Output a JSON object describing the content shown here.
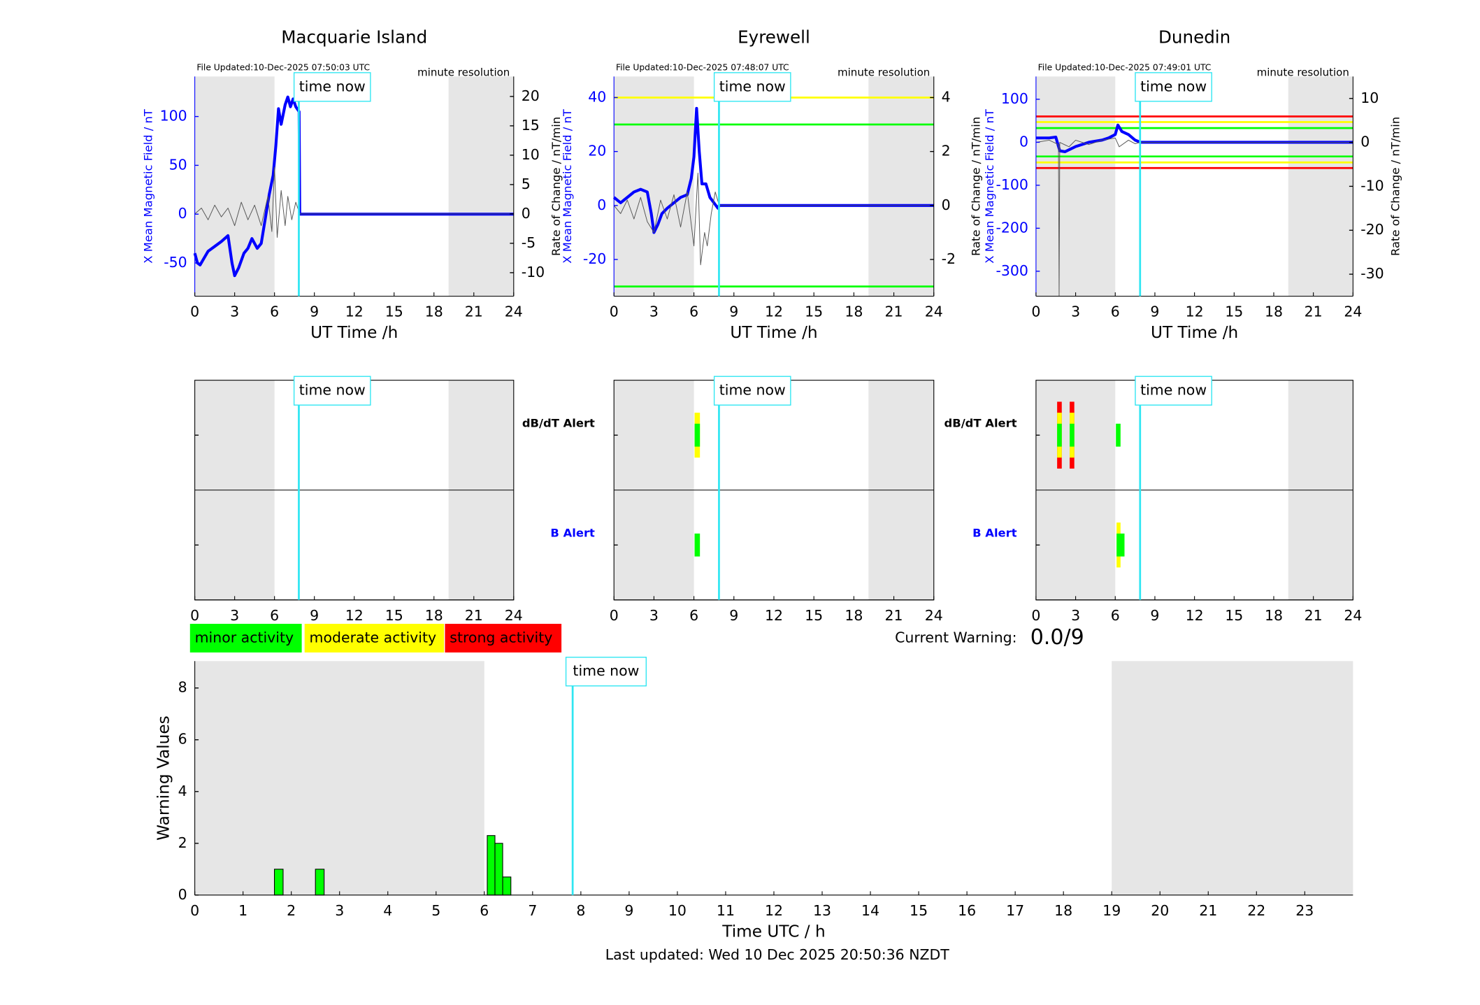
{
  "chart_data": [
    {
      "type": "line",
      "title": "Macquarie Island",
      "file_updated": "File Updated:10-Dec-2025 07:50:03 UTC",
      "resolution": "minute resolution",
      "ylabel": "X Mean Magnetic Field / nT",
      "y2label": "Rate of Change / nT/min",
      "xlabel": "UT Time /h",
      "xlim": [
        0,
        24
      ],
      "xticks": [
        0,
        3,
        6,
        9,
        12,
        15,
        18,
        21,
        24
      ],
      "ylim": [
        -84,
        141
      ],
      "yticks": [
        -50,
        0,
        50,
        100
      ],
      "y2lim": [
        -14,
        23.4
      ],
      "y2ticks": [
        -10,
        -5,
        0,
        5,
        10,
        15,
        20
      ],
      "shaded": [
        [
          0,
          6
        ],
        [
          19.1,
          24
        ]
      ],
      "annotation": "time now",
      "time_now": 7.83,
      "thresholds": [],
      "series": [
        {
          "color": "#0000ff",
          "x": [
            0,
            0.2,
            0.4,
            0.7,
            1,
            1.5,
            2,
            2.5,
            2.8,
            3,
            3.3,
            3.7,
            4,
            4.3,
            4.7,
            5,
            5.3,
            5.6,
            5.9,
            6.1,
            6.3,
            6.5,
            6.8,
            7,
            7.2,
            7.4,
            7.6,
            7.85,
            7.9,
            24
          ],
          "values": [
            -40,
            -50,
            -52,
            -45,
            -38,
            -33,
            -28,
            -22,
            -50,
            -63,
            -55,
            -40,
            -35,
            -25,
            -35,
            -30,
            -5,
            20,
            40,
            70,
            108,
            92,
            112,
            120,
            110,
            118,
            110,
            105,
            0,
            0
          ]
        },
        {
          "color": "#555555",
          "axis": "y2",
          "x": [
            0,
            0.5,
            1,
            1.5,
            2,
            2.5,
            3,
            3.5,
            4,
            4.5,
            5,
            5.5,
            5.8,
            6,
            6.2,
            6.5,
            6.8,
            7,
            7.3,
            7.6,
            7.9,
            24
          ],
          "values": [
            0,
            1,
            -1,
            1.5,
            -0.5,
            1,
            -2,
            2,
            -1,
            1.5,
            -2,
            3,
            -3,
            8,
            -4,
            4,
            -2,
            3,
            -1,
            2,
            0,
            0
          ]
        }
      ]
    },
    {
      "type": "line",
      "title": "Eyrewell",
      "file_updated": "File Updated:10-Dec-2025 07:48:07 UTC",
      "resolution": "minute resolution",
      "ylabel": "X Mean Magnetic Field / nT",
      "y2label": "Rate of Change / nT/min",
      "xlabel": "UT Time /h",
      "xlim": [
        0,
        24
      ],
      "xticks": [
        0,
        3,
        6,
        9,
        12,
        15,
        18,
        21,
        24
      ],
      "ylim": [
        -33.6,
        47.8
      ],
      "yticks": [
        -20,
        0,
        20,
        40
      ],
      "y2lim": [
        -3.36,
        4.78
      ],
      "y2ticks": [
        -2,
        0,
        2,
        4
      ],
      "shaded": [
        [
          0,
          6
        ],
        [
          19.1,
          24
        ]
      ],
      "annotation": "time now",
      "time_now": 7.88,
      "thresholds": [
        {
          "value": 40,
          "color": "#ffff00"
        },
        {
          "value": 30,
          "color": "#00ff00"
        },
        {
          "value": -30,
          "color": "#00ff00"
        }
      ],
      "series": [
        {
          "color": "#0000ff",
          "x": [
            0,
            0.5,
            1,
            1.5,
            2,
            2.5,
            2.8,
            3,
            3.3,
            3.6,
            4,
            4.5,
            5,
            5.5,
            5.8,
            6,
            6.2,
            6.4,
            6.6,
            6.9,
            7.2,
            7.5,
            7.8,
            7.9,
            24
          ],
          "values": [
            3,
            1,
            3,
            5,
            6,
            5,
            -3,
            -10,
            -7,
            -3,
            -1,
            1,
            3,
            4,
            10,
            18,
            36,
            20,
            8,
            8,
            3,
            1,
            -1,
            0,
            0
          ]
        },
        {
          "color": "#555555",
          "axis": "y2",
          "x": [
            0,
            0.5,
            1,
            1.5,
            2,
            2.5,
            3,
            3.5,
            4,
            4.5,
            5,
            5.5,
            6,
            6.3,
            6.5,
            6.8,
            7,
            7.3,
            7.6,
            7.9,
            24
          ],
          "values": [
            0,
            -0.3,
            0.2,
            -0.5,
            0.3,
            -0.6,
            -1,
            0.2,
            -0.5,
            0.4,
            -0.8,
            0.5,
            -1.5,
            1.2,
            -2.2,
            -1,
            -1.5,
            -0.3,
            0.5,
            0,
            0
          ]
        }
      ]
    },
    {
      "type": "line",
      "title": "Dunedin",
      "file_updated": "File Updated:10-Dec-2025 07:49:01 UTC",
      "resolution": "minute resolution",
      "ylabel": "X Mean Magnetic Field / nT",
      "y2label": "Rate of Change / nT/min",
      "xlabel": "UT Time /h",
      "xlim": [
        0,
        24
      ],
      "xticks": [
        0,
        3,
        6,
        9,
        12,
        15,
        18,
        21,
        24
      ],
      "ylim": [
        -358,
        153
      ],
      "yticks": [
        -300,
        -200,
        -100,
        0,
        100
      ],
      "y2lim": [
        -35,
        15
      ],
      "y2ticks": [
        -30,
        -20,
        -10,
        0,
        10
      ],
      "shaded": [
        [
          0,
          6
        ],
        [
          19.1,
          24
        ]
      ],
      "annotation": "time now",
      "time_now": 7.88,
      "thresholds": [
        {
          "value": 60,
          "color": "#ff0000"
        },
        {
          "value": 47,
          "color": "#ffff00"
        },
        {
          "value": 33,
          "color": "#00ff00"
        },
        {
          "value": -33,
          "color": "#00ff00"
        },
        {
          "value": -47,
          "color": "#ffff00"
        },
        {
          "value": -60,
          "color": "#ff0000"
        }
      ],
      "series": [
        {
          "color": "#0000ff",
          "x": [
            0,
            1,
            1.5,
            1.8,
            2.2,
            3,
            4,
            5,
            5.5,
            6,
            6.2,
            6.5,
            7,
            7.5,
            7.9,
            24
          ],
          "values": [
            10,
            10,
            12,
            -20,
            -22,
            -10,
            0,
            5,
            10,
            18,
            40,
            25,
            18,
            5,
            0,
            0
          ]
        },
        {
          "color": "#555555",
          "axis": "y2",
          "x": [
            0,
            1,
            1.7,
            1.75,
            1.8,
            2.5,
            3,
            4,
            5,
            6,
            6.3,
            7,
            7.5,
            7.9,
            24
          ],
          "values": [
            0,
            0.5,
            -0.5,
            -35,
            0,
            -1,
            0.5,
            -0.5,
            0.5,
            1,
            -1,
            0.5,
            -0.3,
            0,
            0
          ]
        }
      ]
    },
    {
      "type": "alert",
      "xlim": [
        0,
        24
      ],
      "xticks": [
        0,
        3,
        6,
        9,
        12,
        15,
        18,
        21,
        24
      ],
      "shaded": [
        [
          0,
          6
        ],
        [
          19.1,
          24
        ]
      ],
      "annotation": "time now",
      "time_now": 7.83,
      "alerts": []
    },
    {
      "type": "alert",
      "xlim": [
        0,
        24
      ],
      "xticks": [
        0,
        3,
        6,
        9,
        12,
        15,
        18,
        21,
        24
      ],
      "shaded": [
        [
          0,
          6
        ],
        [
          19.1,
          24
        ]
      ],
      "annotation": "time now",
      "time_now": 7.88,
      "rows": [
        "dB/dT Alert",
        "B Alert"
      ],
      "row_colors": [
        "#000000",
        "#0000ff"
      ],
      "alerts": [
        {
          "row": 0,
          "x": [
            6.05,
            6.45
          ],
          "color": "#ffff00"
        },
        {
          "row": 0,
          "x": [
            6.05,
            6.45
          ],
          "color": "#00ff00"
        },
        {
          "row": 1,
          "x": [
            6.05,
            6.45
          ],
          "color": "#00ff00"
        }
      ]
    },
    {
      "type": "alert",
      "xlim": [
        0,
        24
      ],
      "xticks": [
        0,
        3,
        6,
        9,
        12,
        15,
        18,
        21,
        24
      ],
      "shaded": [
        [
          0,
          6
        ],
        [
          19.1,
          24
        ]
      ],
      "annotation": "time now",
      "time_now": 7.88,
      "rows": [
        "dB/dT Alert",
        "B Alert"
      ],
      "row_colors": [
        "#000000",
        "#0000ff"
      ],
      "alerts": [
        {
          "row": 0,
          "x": [
            1.6,
            1.95
          ],
          "color": "#ff0000"
        },
        {
          "row": 0,
          "x": [
            1.6,
            1.95
          ],
          "color": "#ffff00"
        },
        {
          "row": 0,
          "x": [
            1.6,
            1.95
          ],
          "color": "#00ff00"
        },
        {
          "row": 0,
          "x": [
            2.55,
            2.9
          ],
          "color": "#ff0000"
        },
        {
          "row": 0,
          "x": [
            2.55,
            2.9
          ],
          "color": "#ffff00"
        },
        {
          "row": 0,
          "x": [
            2.55,
            2.9
          ],
          "color": "#00ff00"
        },
        {
          "row": 0,
          "x": [
            6.05,
            6.4
          ],
          "color": "#00ff00"
        },
        {
          "row": 1,
          "x": [
            6.1,
            6.4
          ],
          "color": "#ffff00"
        },
        {
          "row": 1,
          "x": [
            6.1,
            6.7
          ],
          "color": "#00ff00"
        }
      ]
    },
    {
      "type": "bar",
      "ylabel": "Warning Values",
      "xlabel": "Time UTC / h",
      "xlim": [
        0,
        24
      ],
      "xticks": [
        0,
        1,
        2,
        3,
        4,
        5,
        6,
        7,
        8,
        9,
        10,
        11,
        12,
        13,
        14,
        15,
        16,
        17,
        18,
        19,
        20,
        21,
        22,
        23
      ],
      "ylim": [
        0,
        9.04
      ],
      "yticks": [
        0,
        2,
        4,
        6,
        8
      ],
      "shaded": [
        [
          0,
          6
        ],
        [
          19,
          24
        ]
      ],
      "annotation": "time now",
      "time_now": 7.83,
      "color": "#00ff00",
      "x": [
        [
          1.65,
          1.83
        ],
        [
          2.5,
          2.68
        ],
        [
          6.06,
          6.22
        ],
        [
          6.22,
          6.38
        ],
        [
          6.38,
          6.55
        ]
      ],
      "values": [
        1,
        1,
        2.3,
        2,
        0.7
      ]
    }
  ],
  "legend": [
    {
      "label": "minor activity",
      "color": "#00ff00"
    },
    {
      "label": "moderate activity",
      "color": "#ffff00"
    },
    {
      "label": "strong activity",
      "color": "#ff0000"
    }
  ],
  "current_warning": {
    "label": "Current Warning:",
    "value": "0.0/9"
  },
  "footer": "Last updated: Wed 10 Dec 2025 20:50:36 NZDT"
}
